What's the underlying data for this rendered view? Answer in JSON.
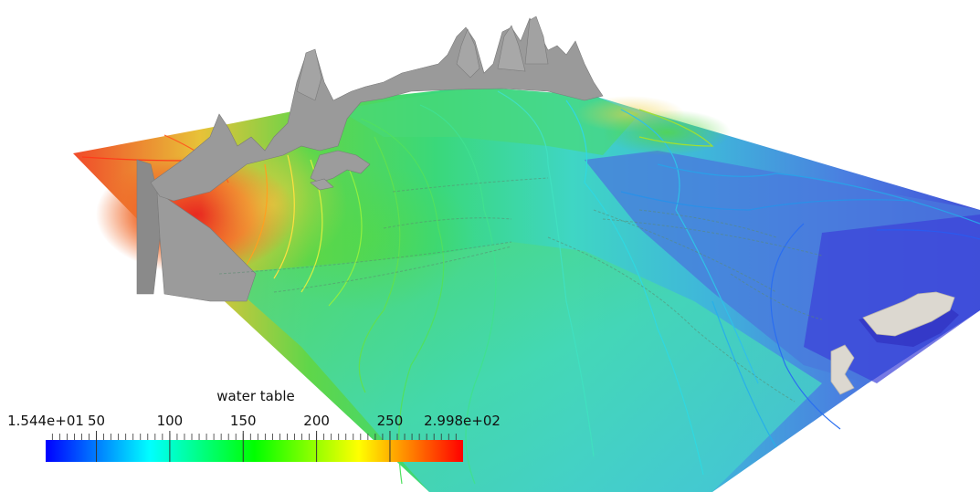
{
  "scene": {
    "description_icon": "3d-terrain-surface-icon",
    "terrain_color": "#9a9a9a",
    "bedrock_color": "#8c8c8c",
    "snow_color": "#dcd8d0"
  },
  "scalar_bar": {
    "title": "water table",
    "min_label": "1.544e+01",
    "max_label": "2.998e+02",
    "min_value": 15.44,
    "max_value": 299.8,
    "ticks": [
      {
        "value": 50,
        "label": "50"
      },
      {
        "value": 100,
        "label": "100"
      },
      {
        "value": 150,
        "label": "150"
      },
      {
        "value": 200,
        "label": "200"
      },
      {
        "value": 250,
        "label": "250"
      }
    ],
    "colormap": [
      "#0000ff",
      "#00ffff",
      "#00ff00",
      "#ffff00",
      "#ff0000"
    ]
  }
}
